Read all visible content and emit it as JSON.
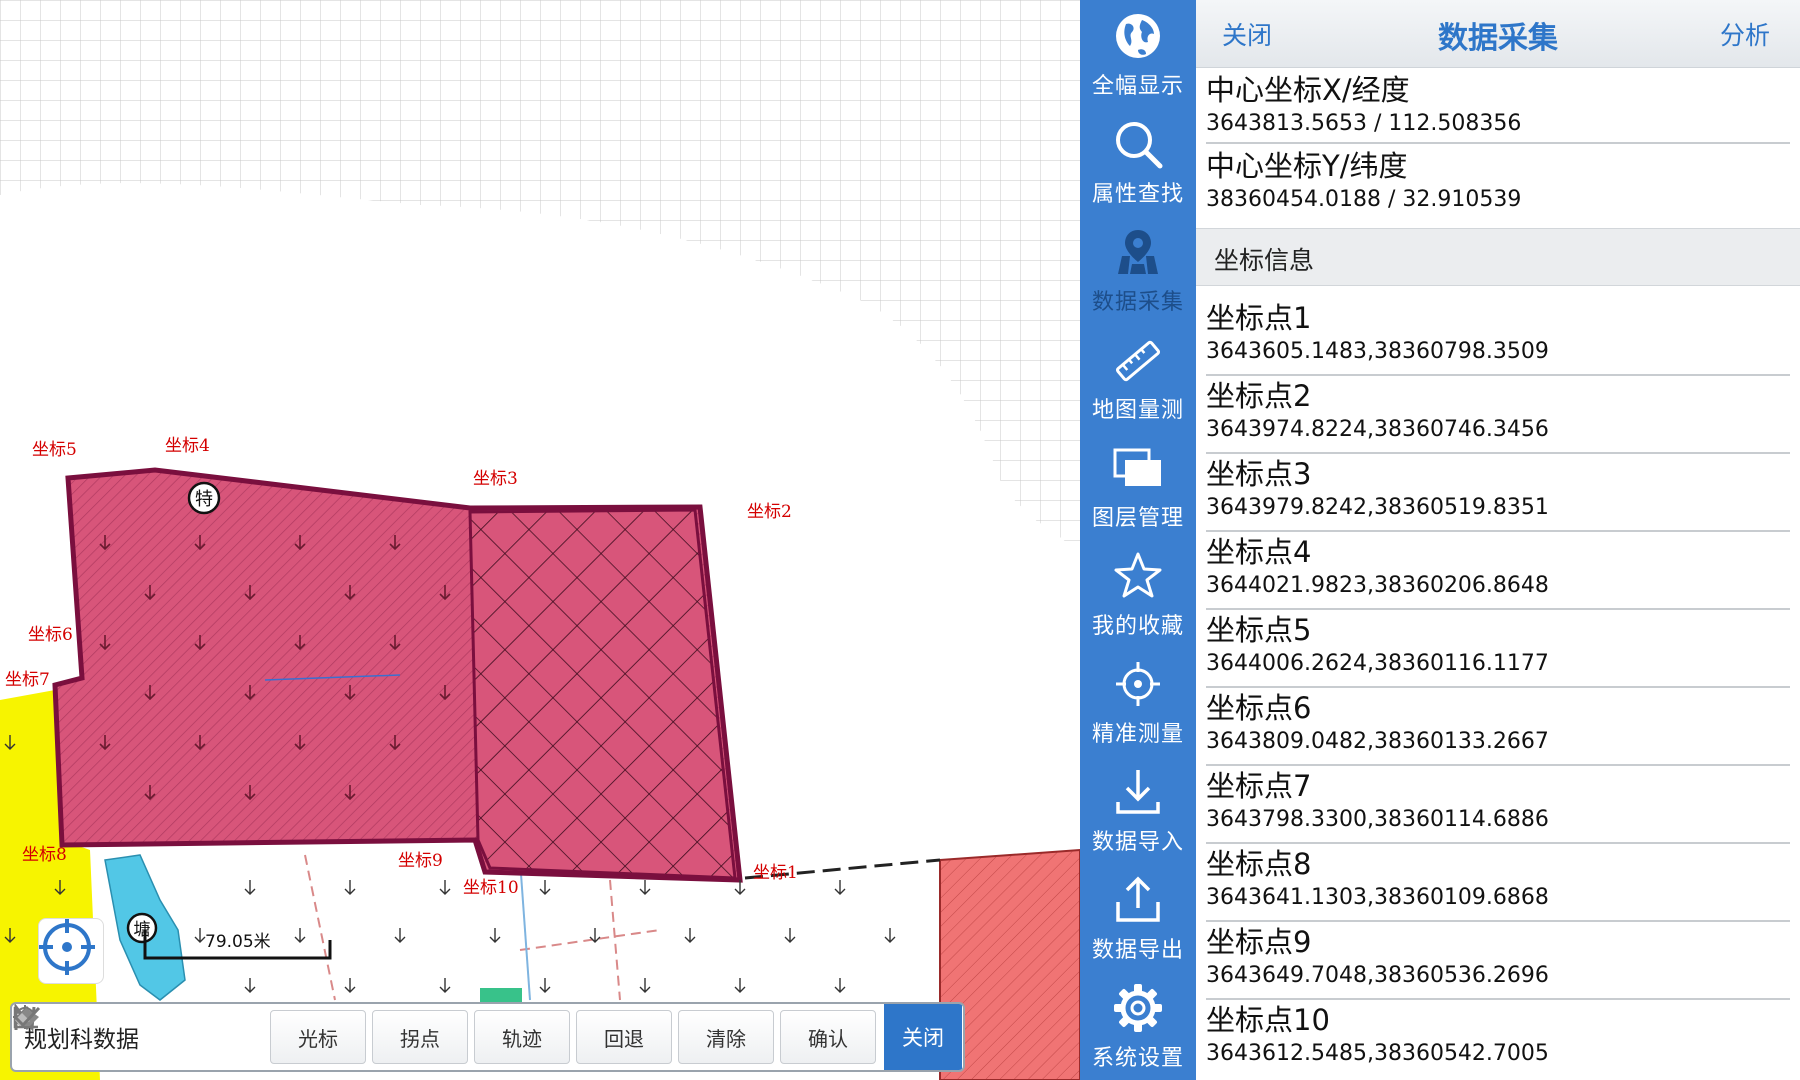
{
  "map": {
    "labels": [
      "坐标1",
      "坐标2",
      "坐标3",
      "坐标4",
      "坐标5",
      "坐标6",
      "坐标7",
      "坐标8",
      "坐标9",
      "坐标10"
    ],
    "marker_te": "特",
    "marker_tang": "塘",
    "scale_text": "79.05米",
    "locate_icon": "crosshair-icon",
    "colors": {
      "parcel": "#d8557a",
      "outline": "#7a0f3e",
      "yellow": "#f7f400",
      "water": "#52c7e6",
      "red_area": "#f08080"
    }
  },
  "toolbar": {
    "layer_name": "规划科数据",
    "buttons": [
      "光标",
      "拐点",
      "轨迹",
      "回退",
      "清除",
      "确认"
    ],
    "close": "关闭"
  },
  "sidebar": {
    "items": [
      {
        "label": "全幅显示",
        "icon": "globe-icon"
      },
      {
        "label": "属性查找",
        "icon": "search-icon"
      },
      {
        "label": "数据采集",
        "icon": "map-pin-icon",
        "active": true
      },
      {
        "label": "地图量测",
        "icon": "ruler-icon"
      },
      {
        "label": "图层管理",
        "icon": "layers-icon"
      },
      {
        "label": "我的收藏",
        "icon": "star-icon"
      },
      {
        "label": "精准测量",
        "icon": "target-icon"
      },
      {
        "label": "数据导入",
        "icon": "download-icon"
      },
      {
        "label": "数据导出",
        "icon": "upload-icon"
      },
      {
        "label": "系统设置",
        "icon": "gear-icon"
      }
    ],
    "color": "#3b7fd0"
  },
  "panel": {
    "close": "关闭",
    "title": "数据采集",
    "analyze": "分析",
    "center_x_label": "中心坐标X/经度",
    "center_x_value": "3643813.5653 / 112.508356",
    "center_y_label": "中心坐标Y/纬度",
    "center_y_value": "38360454.0188 / 32.910539",
    "section_title": "坐标信息",
    "points": [
      {
        "label": "坐标点1",
        "value": "3643605.1483,38360798.3509"
      },
      {
        "label": "坐标点2",
        "value": "3643974.8224,38360746.3456"
      },
      {
        "label": "坐标点3",
        "value": "3643979.8242,38360519.8351"
      },
      {
        "label": "坐标点4",
        "value": "3644021.9823,38360206.8648"
      },
      {
        "label": "坐标点5",
        "value": "3644006.2624,38360116.1177"
      },
      {
        "label": "坐标点6",
        "value": "3643809.0482,38360133.2667"
      },
      {
        "label": "坐标点7",
        "value": "3643798.3300,38360114.6886"
      },
      {
        "label": "坐标点8",
        "value": "3643641.1303,38360109.6868"
      },
      {
        "label": "坐标点9",
        "value": "3643649.7048,38360536.2696"
      },
      {
        "label": "坐标点10",
        "value": "3643612.5485,38360542.7005"
      }
    ],
    "accent": "#2e76c9"
  }
}
